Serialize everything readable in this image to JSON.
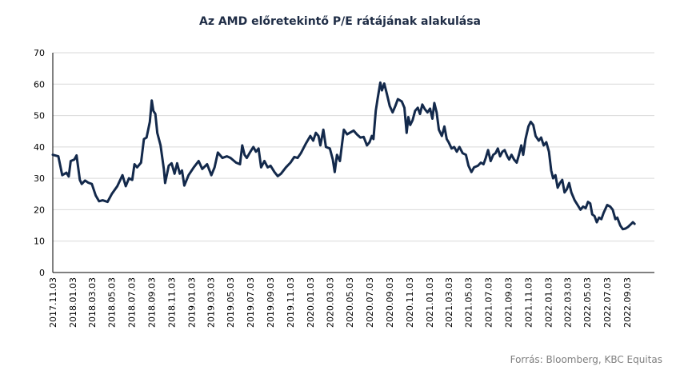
{
  "chart_data": {
    "type": "line",
    "title": "Az AMD előretekintő P/E rátájának alakulása",
    "source": "Forrás: Bloomberg, KBC Equitas",
    "xlabel": "",
    "ylabel": "",
    "ylim": [
      0,
      70
    ],
    "yticks": [
      "0",
      "10",
      "20",
      "30",
      "40",
      "50",
      "60",
      "70"
    ],
    "xlim": [
      "2017-11-03",
      "2022-11-25"
    ],
    "xticks": [
      "2017.11.03",
      "2018.01.03",
      "2018.03.03",
      "2018.05.03",
      "2018.07.03",
      "2018.09.03",
      "2018.11.03",
      "2019.01.03",
      "2019.03.03",
      "2019.05.03",
      "2019.07.03",
      "2019.09.03",
      "2019.11.03",
      "2020.01.03",
      "2020.03.03",
      "2020.05.03",
      "2020.07.03",
      "2020.09.03",
      "2020.11.03",
      "2021.01.03",
      "2021.03.03",
      "2021.05.03",
      "2021.07.03",
      "2021.09.03",
      "2021.11.03",
      "2022.01.03",
      "2022.03.03",
      "2022.05.03",
      "2022.07.03",
      "2022.09.03"
    ],
    "grid": "horizontal",
    "line_color": "#13294b",
    "series": [
      {
        "points": [
          [
            "2017-11-03",
            37.5
          ],
          [
            "2017-11-20",
            37.0
          ],
          [
            "2017-12-02",
            31.0
          ],
          [
            "2017-12-15",
            31.8
          ],
          [
            "2017-12-22",
            30.6
          ],
          [
            "2017-12-28",
            35.5
          ],
          [
            "2018-01-08",
            36.0
          ],
          [
            "2018-01-15",
            37.3
          ],
          [
            "2018-01-25",
            29.5
          ],
          [
            "2018-01-31",
            28.2
          ],
          [
            "2018-02-10",
            29.3
          ],
          [
            "2018-02-20",
            28.6
          ],
          [
            "2018-03-03",
            28.2
          ],
          [
            "2018-03-15",
            24.5
          ],
          [
            "2018-03-25",
            22.7
          ],
          [
            "2018-04-05",
            23.0
          ],
          [
            "2018-04-20",
            22.5
          ],
          [
            "2018-05-03",
            25.0
          ],
          [
            "2018-05-20",
            27.5
          ],
          [
            "2018-06-05",
            31.0
          ],
          [
            "2018-06-15",
            27.5
          ],
          [
            "2018-06-25",
            30.0
          ],
          [
            "2018-07-05",
            29.5
          ],
          [
            "2018-07-12",
            34.5
          ],
          [
            "2018-07-20",
            33.5
          ],
          [
            "2018-08-01",
            35.0
          ],
          [
            "2018-08-10",
            42.5
          ],
          [
            "2018-08-18",
            43.0
          ],
          [
            "2018-08-28",
            48.0
          ],
          [
            "2018-09-03",
            54.8
          ],
          [
            "2018-09-08",
            51.5
          ],
          [
            "2018-09-14",
            50.5
          ],
          [
            "2018-09-20",
            44.5
          ],
          [
            "2018-09-30",
            40.5
          ],
          [
            "2018-10-10",
            33.0
          ],
          [
            "2018-10-14",
            28.5
          ],
          [
            "2018-10-25",
            34.0
          ],
          [
            "2018-11-03",
            34.8
          ],
          [
            "2018-11-12",
            31.5
          ],
          [
            "2018-11-20",
            34.8
          ],
          [
            "2018-11-28",
            31.5
          ],
          [
            "2018-12-05",
            32.5
          ],
          [
            "2018-12-12",
            27.7
          ],
          [
            "2018-12-25",
            31.0
          ],
          [
            "2019-01-10",
            33.5
          ],
          [
            "2019-01-25",
            35.5
          ],
          [
            "2019-02-05",
            33.0
          ],
          [
            "2019-02-20",
            34.5
          ],
          [
            "2019-03-05",
            31.0
          ],
          [
            "2019-03-15",
            33.5
          ],
          [
            "2019-03-25",
            38.2
          ],
          [
            "2019-04-08",
            36.5
          ],
          [
            "2019-04-22",
            37.0
          ],
          [
            "2019-05-03",
            36.5
          ],
          [
            "2019-05-20",
            35.0
          ],
          [
            "2019-06-01",
            34.5
          ],
          [
            "2019-06-08",
            40.5
          ],
          [
            "2019-06-15",
            37.5
          ],
          [
            "2019-06-22",
            36.5
          ],
          [
            "2019-07-03",
            38.5
          ],
          [
            "2019-07-12",
            40.0
          ],
          [
            "2019-07-20",
            38.5
          ],
          [
            "2019-07-28",
            39.5
          ],
          [
            "2019-08-05",
            33.5
          ],
          [
            "2019-08-15",
            35.5
          ],
          [
            "2019-08-25",
            33.5
          ],
          [
            "2019-09-03",
            34.0
          ],
          [
            "2019-09-15",
            32.0
          ],
          [
            "2019-09-25",
            30.7
          ],
          [
            "2019-10-05",
            31.5
          ],
          [
            "2019-10-20",
            33.5
          ],
          [
            "2019-11-03",
            35.0
          ],
          [
            "2019-11-15",
            36.8
          ],
          [
            "2019-11-25",
            36.5
          ],
          [
            "2019-12-05",
            38.0
          ],
          [
            "2019-12-20",
            41.0
          ],
          [
            "2020-01-03",
            43.5
          ],
          [
            "2020-01-12",
            42.0
          ],
          [
            "2020-01-20",
            44.5
          ],
          [
            "2020-01-28",
            43.5
          ],
          [
            "2020-02-03",
            40.5
          ],
          [
            "2020-02-12",
            45.5
          ],
          [
            "2020-02-20",
            40.0
          ],
          [
            "2020-03-03",
            39.5
          ],
          [
            "2020-03-12",
            36.0
          ],
          [
            "2020-03-18",
            32.0
          ],
          [
            "2020-03-25",
            37.5
          ],
          [
            "2020-04-03",
            35.5
          ],
          [
            "2020-04-15",
            45.5
          ],
          [
            "2020-04-25",
            44.0
          ],
          [
            "2020-05-03",
            44.5
          ],
          [
            "2020-05-15",
            45.2
          ],
          [
            "2020-05-25",
            44.0
          ],
          [
            "2020-06-05",
            43.0
          ],
          [
            "2020-06-15",
            43.2
          ],
          [
            "2020-06-25",
            40.5
          ],
          [
            "2020-07-03",
            41.5
          ],
          [
            "2020-07-10",
            43.5
          ],
          [
            "2020-07-15",
            42.5
          ],
          [
            "2020-07-22",
            51.5
          ],
          [
            "2020-07-28",
            55.5
          ],
          [
            "2020-08-05",
            60.5
          ],
          [
            "2020-08-10",
            58.0
          ],
          [
            "2020-08-17",
            60.2
          ],
          [
            "2020-08-25",
            57.0
          ],
          [
            "2020-09-03",
            53.0
          ],
          [
            "2020-09-12",
            51.0
          ],
          [
            "2020-09-20",
            53.0
          ],
          [
            "2020-09-28",
            55.2
          ],
          [
            "2020-10-10",
            54.5
          ],
          [
            "2020-10-18",
            52.5
          ],
          [
            "2020-10-25",
            44.5
          ],
          [
            "2020-10-30",
            49.5
          ],
          [
            "2020-11-05",
            47.0
          ],
          [
            "2020-11-12",
            48.5
          ],
          [
            "2020-11-20",
            51.5
          ],
          [
            "2020-11-28",
            52.5
          ],
          [
            "2020-12-05",
            50.5
          ],
          [
            "2020-12-12",
            53.5
          ],
          [
            "2020-12-20",
            52.0
          ],
          [
            "2020-12-28",
            51.0
          ],
          [
            "2021-01-05",
            52.2
          ],
          [
            "2021-01-12",
            49.0
          ],
          [
            "2021-01-18",
            54.0
          ],
          [
            "2021-01-25",
            51.0
          ],
          [
            "2021-02-01",
            45.5
          ],
          [
            "2021-02-10",
            43.5
          ],
          [
            "2021-02-18",
            46.5
          ],
          [
            "2021-02-25",
            42.5
          ],
          [
            "2021-03-03",
            41.5
          ],
          [
            "2021-03-12",
            39.5
          ],
          [
            "2021-03-20",
            40.0
          ],
          [
            "2021-03-28",
            38.5
          ],
          [
            "2021-04-05",
            40.0
          ],
          [
            "2021-04-15",
            38.0
          ],
          [
            "2021-04-25",
            37.5
          ],
          [
            "2021-05-03",
            34.0
          ],
          [
            "2021-05-12",
            32.0
          ],
          [
            "2021-05-20",
            33.5
          ],
          [
            "2021-06-01",
            34.0
          ],
          [
            "2021-06-10",
            35.0
          ],
          [
            "2021-06-18",
            34.5
          ],
          [
            "2021-06-25",
            36.5
          ],
          [
            "2021-07-02",
            39.0
          ],
          [
            "2021-07-10",
            35.5
          ],
          [
            "2021-07-18",
            37.5
          ],
          [
            "2021-07-25",
            38.0
          ],
          [
            "2021-08-01",
            39.5
          ],
          [
            "2021-08-08",
            37.0
          ],
          [
            "2021-08-15",
            38.5
          ],
          [
            "2021-08-22",
            39.0
          ],
          [
            "2021-08-30",
            37.0
          ],
          [
            "2021-09-05",
            36.0
          ],
          [
            "2021-09-12",
            37.5
          ],
          [
            "2021-09-20",
            36.0
          ],
          [
            "2021-09-28",
            35.0
          ],
          [
            "2021-10-05",
            37.5
          ],
          [
            "2021-10-12",
            40.5
          ],
          [
            "2021-10-18",
            37.5
          ],
          [
            "2021-10-25",
            42.5
          ],
          [
            "2021-11-03",
            46.5
          ],
          [
            "2021-11-10",
            48.0
          ],
          [
            "2021-11-18",
            47.0
          ],
          [
            "2021-11-25",
            43.5
          ],
          [
            "2021-12-05",
            42.0
          ],
          [
            "2021-12-12",
            43.0
          ],
          [
            "2021-12-20",
            40.5
          ],
          [
            "2021-12-28",
            41.5
          ],
          [
            "2022-01-05",
            38.5
          ],
          [
            "2022-01-12",
            32.5
          ],
          [
            "2022-01-18",
            30.0
          ],
          [
            "2022-01-25",
            31.0
          ],
          [
            "2022-02-01",
            27.0
          ],
          [
            "2022-02-08",
            28.5
          ],
          [
            "2022-02-15",
            29.5
          ],
          [
            "2022-02-22",
            25.5
          ],
          [
            "2022-03-01",
            26.5
          ],
          [
            "2022-03-08",
            28.5
          ],
          [
            "2022-03-15",
            25.5
          ],
          [
            "2022-03-25",
            23.0
          ],
          [
            "2022-04-03",
            21.5
          ],
          [
            "2022-04-12",
            20.0
          ],
          [
            "2022-04-20",
            21.0
          ],
          [
            "2022-04-28",
            20.5
          ],
          [
            "2022-05-05",
            22.5
          ],
          [
            "2022-05-12",
            22.0
          ],
          [
            "2022-05-18",
            18.5
          ],
          [
            "2022-05-25",
            18.0
          ],
          [
            "2022-06-01",
            16.0
          ],
          [
            "2022-06-08",
            17.5
          ],
          [
            "2022-06-15",
            17.0
          ],
          [
            "2022-06-22",
            19.0
          ],
          [
            "2022-07-03",
            21.5
          ],
          [
            "2022-07-12",
            21.0
          ],
          [
            "2022-07-20",
            20.0
          ],
          [
            "2022-07-28",
            17.0
          ],
          [
            "2022-08-03",
            17.5
          ],
          [
            "2022-08-12",
            15.0
          ],
          [
            "2022-08-20",
            13.8
          ],
          [
            "2022-08-28",
            14.0
          ],
          [
            "2022-09-05",
            14.5
          ],
          [
            "2022-09-15",
            15.5
          ],
          [
            "2022-09-20",
            16.0
          ],
          [
            "2022-09-25",
            15.5
          ]
        ]
      }
    ]
  }
}
